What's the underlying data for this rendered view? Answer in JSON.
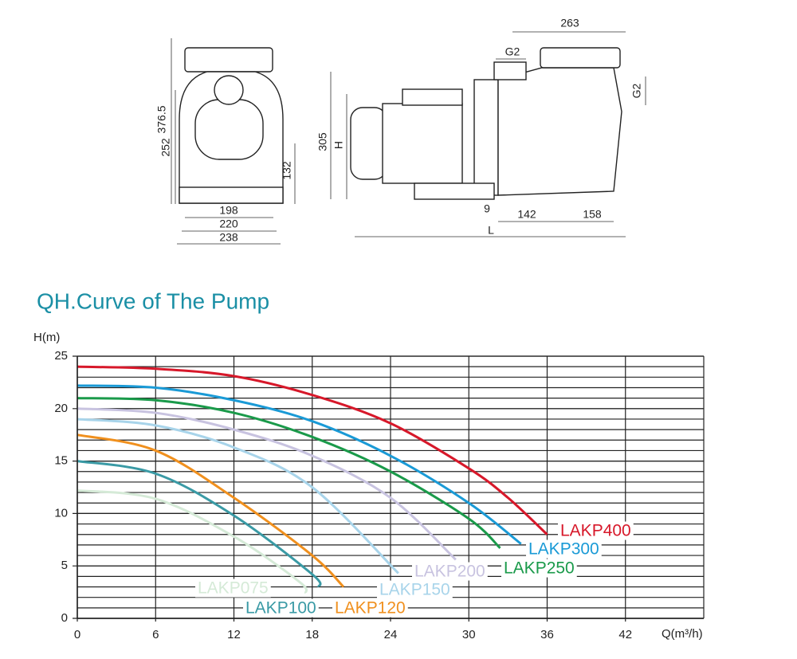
{
  "drawing": {
    "labels": [
      "263",
      "G2",
      "G2",
      "376.5",
      "252",
      "132",
      "305",
      "H",
      "198",
      "220",
      "238",
      "9",
      "142",
      "158",
      "L"
    ]
  },
  "chart_data": {
    "type": "line",
    "title": "QH.Curve of The Pump",
    "y_label": "H(m)",
    "x_label": "Q(m³/h)",
    "xlim": [
      0,
      48
    ],
    "xticks": [
      0,
      6,
      12,
      18,
      24,
      30,
      36,
      42
    ],
    "ylim": [
      0,
      25
    ],
    "yticks": [
      0,
      5,
      10,
      15,
      20,
      25
    ],
    "grid": true,
    "series": [
      {
        "name": "LAKP400",
        "color": "#d7182a",
        "x": [
          0,
          6,
          12,
          18,
          24,
          30,
          33,
          36
        ],
        "values": [
          24,
          23.8,
          23.1,
          21.3,
          18.6,
          14.3,
          11.5,
          8
        ]
      },
      {
        "name": "LAKP300",
        "color": "#1a9ad6",
        "x": [
          0,
          6,
          12,
          18,
          24,
          30,
          34
        ],
        "values": [
          22.2,
          22,
          20.8,
          18.8,
          15.5,
          11,
          7.1
        ]
      },
      {
        "name": "LAKP250",
        "color": "#1a9a4a",
        "x": [
          0,
          6,
          12,
          18,
          24,
          30,
          32.4
        ],
        "values": [
          21,
          20.8,
          19.6,
          17.3,
          14,
          9.5,
          6.7
        ]
      },
      {
        "name": "LAKP200",
        "color": "#c8c3e0",
        "x": [
          0,
          6,
          12,
          18,
          24,
          29
        ],
        "values": [
          20,
          19.6,
          18,
          15.5,
          11.5,
          5.6
        ]
      },
      {
        "name": "LAKP150",
        "color": "#a8d4ea",
        "x": [
          0,
          6,
          12,
          18,
          24.6
        ],
        "values": [
          19,
          18.4,
          16.3,
          12.5,
          4.3
        ]
      },
      {
        "name": "LAKP120",
        "color": "#f0901e",
        "x": [
          0,
          6,
          12,
          18,
          20.4
        ],
        "values": [
          17.5,
          16,
          11.5,
          6,
          3
        ]
      },
      {
        "name": "LAKP100",
        "color": "#3a9aa5",
        "x": [
          0,
          6,
          12,
          18,
          18.5
        ],
        "values": [
          15,
          13.8,
          9.8,
          4.2,
          3
        ]
      },
      {
        "name": "LAKP075",
        "color": "#d5ead7",
        "x": [
          0,
          6,
          12,
          17,
          17.5
        ],
        "values": [
          12.2,
          11.4,
          7.8,
          3.5,
          2.4
        ]
      }
    ]
  }
}
